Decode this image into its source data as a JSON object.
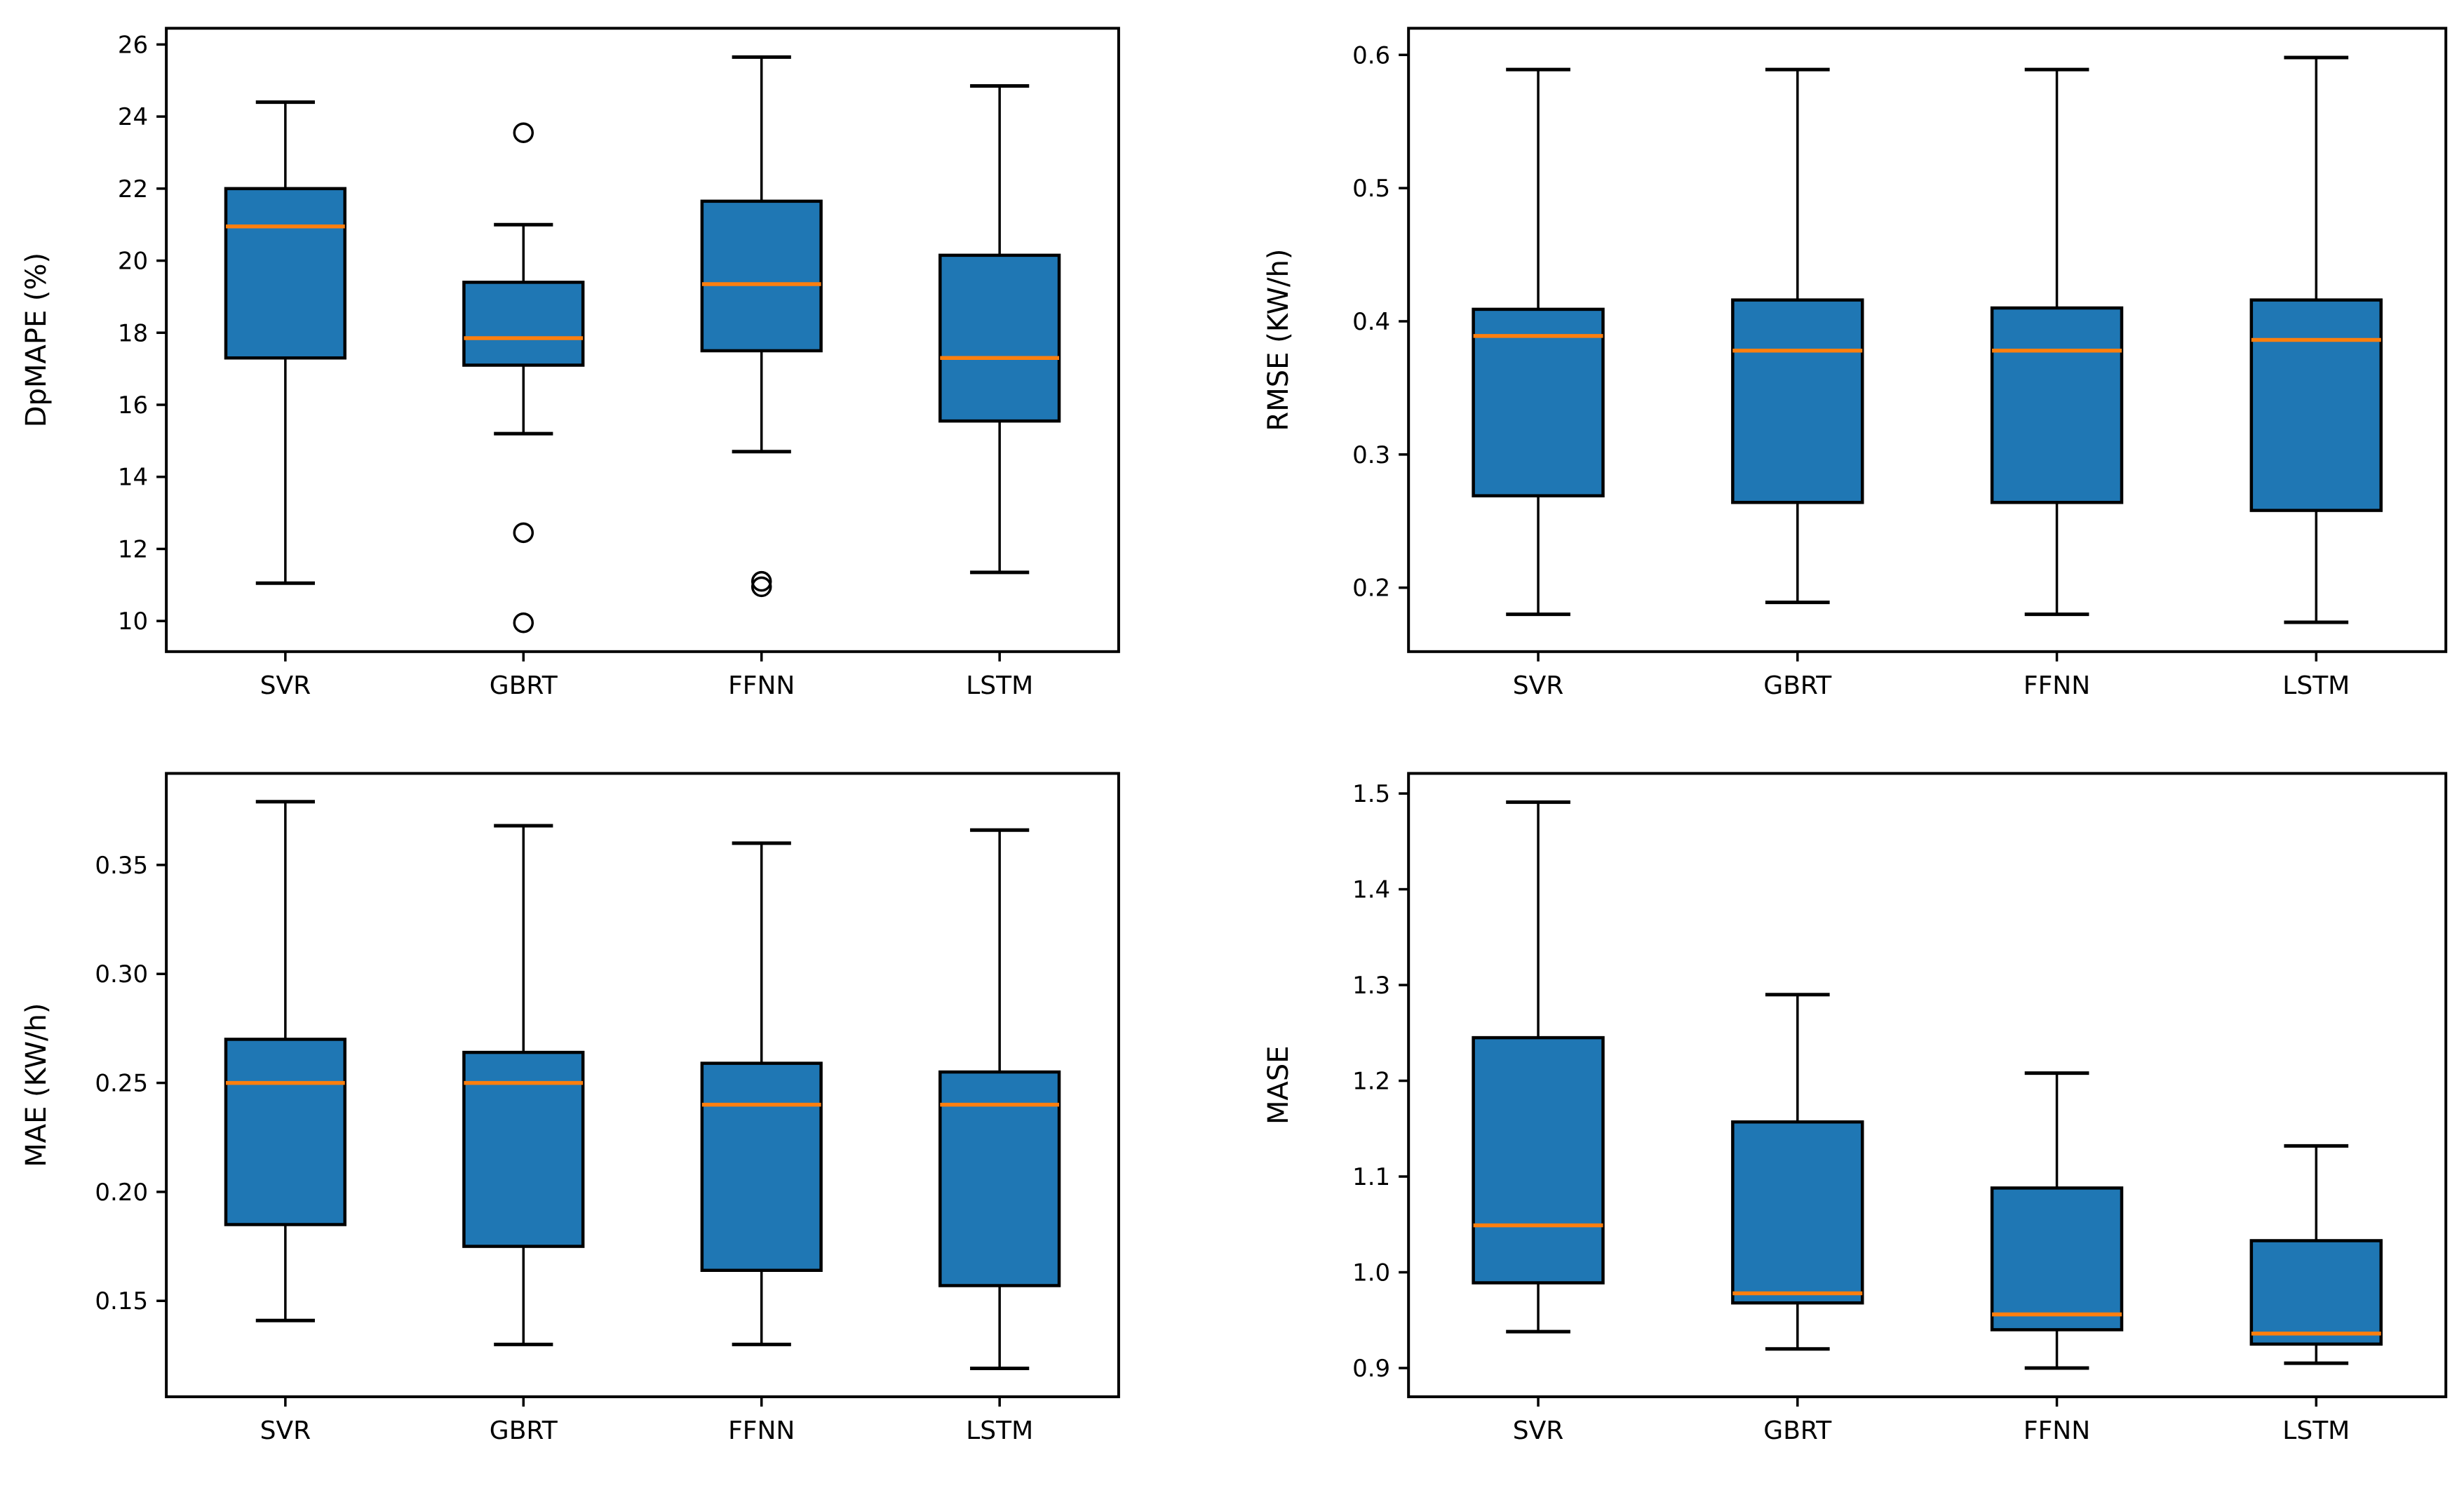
{
  "figure": {
    "description": "2x2 grid of box plots comparing forecasting models on four error metrics",
    "models": [
      "SVR",
      "GBRT",
      "FFNN",
      "LSTM"
    ]
  },
  "colors": {
    "box_fill": "#1f77b4",
    "median_line": "#ff7f0e",
    "line": "#000000",
    "text": "#000000",
    "background": "#ffffff"
  },
  "chart_data": [
    {
      "id": "dpmape",
      "type": "boxplot",
      "position": "top-left",
      "title": "",
      "xlabel": "",
      "ylabel": "DpMAPE (%)",
      "categories": [
        "SVR",
        "GBRT",
        "FFNN",
        "LSTM"
      ],
      "ylim": [
        9.15,
        26.45
      ],
      "ytick_values": [
        10,
        12,
        14,
        16,
        18,
        20,
        22,
        24,
        26
      ],
      "ytick_labels": [
        "10",
        "12",
        "14",
        "16",
        "18",
        "20",
        "22",
        "24",
        "26"
      ],
      "grid": false,
      "boxes": [
        {
          "category": "SVR",
          "whisker_low": 11.05,
          "q1": 17.3,
          "median": 20.95,
          "q3": 22.0,
          "whisker_high": 24.4,
          "outliers": []
        },
        {
          "category": "GBRT",
          "whisker_low": 15.2,
          "q1": 17.1,
          "median": 17.85,
          "q3": 19.4,
          "whisker_high": 21.0,
          "outliers": [
            23.55,
            12.45,
            9.95
          ]
        },
        {
          "category": "FFNN",
          "whisker_low": 14.7,
          "q1": 17.5,
          "median": 19.35,
          "q3": 21.65,
          "whisker_high": 25.65,
          "outliers": [
            11.1,
            10.95
          ]
        },
        {
          "category": "LSTM",
          "whisker_low": 11.35,
          "q1": 15.55,
          "median": 17.3,
          "q3": 20.15,
          "whisker_high": 24.85,
          "outliers": []
        }
      ]
    },
    {
      "id": "rmse",
      "type": "boxplot",
      "position": "top-right",
      "title": "",
      "xlabel": "",
      "ylabel": "RMSE (KW/h)",
      "categories": [
        "SVR",
        "GBRT",
        "FFNN",
        "LSTM"
      ],
      "ylim": [
        0.152,
        0.62
      ],
      "ytick_values": [
        0.2,
        0.3,
        0.4,
        0.5,
        0.6
      ],
      "ytick_labels": [
        "0.2",
        "0.3",
        "0.4",
        "0.5",
        "0.6"
      ],
      "grid": false,
      "boxes": [
        {
          "category": "SVR",
          "whisker_low": 0.18,
          "q1": 0.269,
          "median": 0.389,
          "q3": 0.409,
          "whisker_high": 0.589,
          "outliers": []
        },
        {
          "category": "GBRT",
          "whisker_low": 0.189,
          "q1": 0.264,
          "median": 0.378,
          "q3": 0.416,
          "whisker_high": 0.589,
          "outliers": []
        },
        {
          "category": "FFNN",
          "whisker_low": 0.18,
          "q1": 0.264,
          "median": 0.378,
          "q3": 0.41,
          "whisker_high": 0.589,
          "outliers": []
        },
        {
          "category": "LSTM",
          "whisker_low": 0.174,
          "q1": 0.258,
          "median": 0.386,
          "q3": 0.416,
          "whisker_high": 0.598,
          "outliers": []
        }
      ]
    },
    {
      "id": "mae",
      "type": "boxplot",
      "position": "bottom-left",
      "title": "",
      "xlabel": "",
      "ylabel": "MAE (KW/h)",
      "categories": [
        "SVR",
        "GBRT",
        "FFNN",
        "LSTM"
      ],
      "ylim": [
        0.106,
        0.392
      ],
      "ytick_values": [
        0.15,
        0.2,
        0.25,
        0.3,
        0.35
      ],
      "ytick_labels": [
        "0.15",
        "0.20",
        "0.25",
        "0.30",
        "0.35"
      ],
      "grid": false,
      "boxes": [
        {
          "category": "SVR",
          "whisker_low": 0.141,
          "q1": 0.185,
          "median": 0.25,
          "q3": 0.27,
          "whisker_high": 0.379,
          "outliers": []
        },
        {
          "category": "GBRT",
          "whisker_low": 0.13,
          "q1": 0.175,
          "median": 0.25,
          "q3": 0.264,
          "whisker_high": 0.368,
          "outliers": []
        },
        {
          "category": "FFNN",
          "whisker_low": 0.13,
          "q1": 0.164,
          "median": 0.24,
          "q3": 0.259,
          "whisker_high": 0.36,
          "outliers": []
        },
        {
          "category": "LSTM",
          "whisker_low": 0.119,
          "q1": 0.157,
          "median": 0.24,
          "q3": 0.255,
          "whisker_high": 0.366,
          "outliers": []
        }
      ]
    },
    {
      "id": "mase",
      "type": "boxplot",
      "position": "bottom-right",
      "title": "",
      "xlabel": "",
      "ylabel": "MASE",
      "categories": [
        "SVR",
        "GBRT",
        "FFNN",
        "LSTM"
      ],
      "ylim": [
        0.87,
        1.521
      ],
      "ytick_values": [
        0.9,
        1.0,
        1.1,
        1.2,
        1.3,
        1.4,
        1.5
      ],
      "ytick_labels": [
        "0.9",
        "1.0",
        "1.1",
        "1.2",
        "1.3",
        "1.4",
        "1.5"
      ],
      "grid": false,
      "boxes": [
        {
          "category": "SVR",
          "whisker_low": 0.938,
          "q1": 0.989,
          "median": 1.049,
          "q3": 1.245,
          "whisker_high": 1.491,
          "outliers": []
        },
        {
          "category": "GBRT",
          "whisker_low": 0.92,
          "q1": 0.968,
          "median": 0.978,
          "q3": 1.157,
          "whisker_high": 1.29,
          "outliers": []
        },
        {
          "category": "FFNN",
          "whisker_low": 0.9,
          "q1": 0.94,
          "median": 0.956,
          "q3": 1.088,
          "whisker_high": 1.208,
          "outliers": []
        },
        {
          "category": "LSTM",
          "whisker_low": 0.905,
          "q1": 0.925,
          "median": 0.936,
          "q3": 1.033,
          "whisker_high": 1.132,
          "outliers": []
        }
      ]
    }
  ]
}
